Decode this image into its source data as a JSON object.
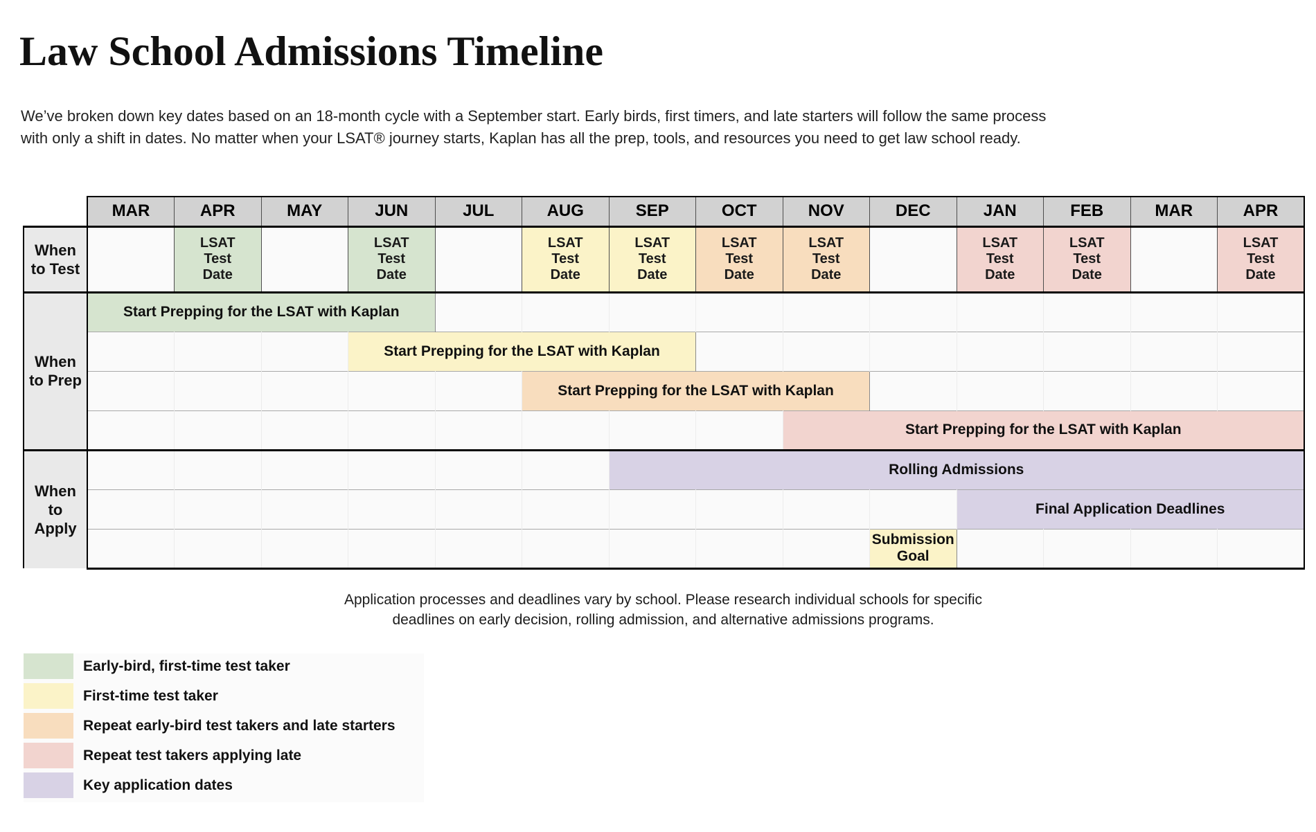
{
  "page": {
    "title": "Law School Admissions Timeline",
    "intro_line1": "We’ve broken down key dates based on an 18-month cycle with a September start. Early birds, first timers, and late starters will follow the same process",
    "intro_line2": "with only a shift in dates. No matter when your LSAT® journey starts, Kaplan has all the prep, tools, and resources you need to get law school ready.",
    "footnote_line1": "Application processes and deadlines vary by school. Please research individual schools for specific",
    "footnote_line2": "deadlines on early decision, rolling admission, and alternative admissions programs."
  },
  "colors": {
    "early_bird_green": "#d6e4cf",
    "first_time_yellow": "#fbf3c8",
    "repeat_early_orange": "#f8ddbe",
    "repeat_late_pink": "#f2d4cf",
    "key_application_purple": "#d8d2e5",
    "month_header_gray": "#d2d2d2",
    "row_label_gray": "#e9e9e9",
    "empty_cell_bg": "#fafafa"
  },
  "chart_data": {
    "type": "table",
    "title": "Law School Admissions Timeline",
    "months": [
      "MAR",
      "APR",
      "MAY",
      "JUN",
      "JUL",
      "AUG",
      "SEP",
      "OCT",
      "NOV",
      "DEC",
      "JAN",
      "FEB",
      "MAR",
      "APR"
    ],
    "sections": [
      {
        "label": "When to Test",
        "label_display": "When\nto Test",
        "rows": [
          {
            "kind": "cells",
            "cells": [
              {
                "month_index": 1,
                "month": "APR",
                "text": "LSAT\nTest\nDate",
                "color_key": "early_bird_green"
              },
              {
                "month_index": 3,
                "month": "JUN",
                "text": "LSAT\nTest\nDate",
                "color_key": "early_bird_green"
              },
              {
                "month_index": 5,
                "month": "AUG",
                "text": "LSAT\nTest\nDate",
                "color_key": "first_time_yellow"
              },
              {
                "month_index": 6,
                "month": "SEP",
                "text": "LSAT\nTest\nDate",
                "color_key": "first_time_yellow"
              },
              {
                "month_index": 7,
                "month": "OCT",
                "text": "LSAT\nTest\nDate",
                "color_key": "repeat_early_orange"
              },
              {
                "month_index": 8,
                "month": "NOV",
                "text": "LSAT\nTest\nDate",
                "color_key": "repeat_early_orange"
              },
              {
                "month_index": 10,
                "month": "JAN",
                "text": "LSAT\nTest\nDate",
                "color_key": "repeat_late_pink"
              },
              {
                "month_index": 11,
                "month": "FEB",
                "text": "LSAT\nTest\nDate",
                "color_key": "repeat_late_pink"
              },
              {
                "month_index": 13,
                "month": "APR",
                "text": "LSAT\nTest\nDate",
                "color_key": "repeat_late_pink"
              }
            ]
          }
        ]
      },
      {
        "label": "When to Prep",
        "label_display": "When\nto Prep",
        "rows": [
          {
            "kind": "bar",
            "text": "Start Prepping for the LSAT with Kaplan",
            "start_index": 0,
            "end_index": 3,
            "start_month": "MAR",
            "end_month": "JUN",
            "color_key": "early_bird_green"
          },
          {
            "kind": "bar",
            "text": "Start Prepping for the LSAT with Kaplan",
            "start_index": 3,
            "end_index": 6,
            "start_month": "JUN",
            "end_month": "SEP",
            "color_key": "first_time_yellow"
          },
          {
            "kind": "bar",
            "text": "Start Prepping for the LSAT with Kaplan",
            "start_index": 5,
            "end_index": 8,
            "start_month": "AUG",
            "end_month": "NOV",
            "color_key": "repeat_early_orange"
          },
          {
            "kind": "bar",
            "text": "Start Prepping for the LSAT with Kaplan",
            "start_index": 8,
            "end_index": 13,
            "start_month": "NOV",
            "end_month": "APR",
            "color_key": "repeat_late_pink"
          }
        ]
      },
      {
        "label": "When to Apply",
        "label_display": "When\nto\nApply",
        "rows": [
          {
            "kind": "bar",
            "text": "Rolling Admissions",
            "start_index": 6,
            "end_index": 13,
            "start_month": "SEP",
            "end_month": "APR",
            "color_key": "key_application_purple"
          },
          {
            "kind": "bar",
            "text": "Final Application Deadlines",
            "start_index": 10,
            "end_index": 13,
            "start_month": "JAN",
            "end_month": "APR",
            "color_key": "key_application_purple"
          },
          {
            "kind": "bar",
            "text": "Submission\nGoal",
            "start_index": 9,
            "end_index": 9,
            "start_month": "DEC",
            "end_month": "DEC",
            "color_key": "first_time_yellow"
          }
        ]
      }
    ]
  },
  "legend": {
    "items": [
      {
        "color_key": "early_bird_green",
        "label": "Early-bird, first-time test taker"
      },
      {
        "color_key": "first_time_yellow",
        "label": "First-time test taker"
      },
      {
        "color_key": "repeat_early_orange",
        "label": "Repeat early-bird test takers and late starters"
      },
      {
        "color_key": "repeat_late_pink",
        "label": "Repeat test takers applying late"
      },
      {
        "color_key": "key_application_purple",
        "label": "Key application dates"
      }
    ]
  }
}
